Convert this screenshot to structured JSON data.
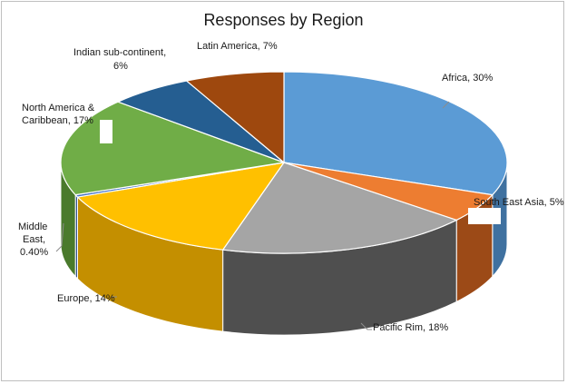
{
  "chart_data": {
    "type": "pie",
    "title": "Responses by Region",
    "three_d": true,
    "legend": "none",
    "slices": [
      {
        "label": "Africa",
        "value": 30,
        "value_label": "30%",
        "color": "#5b9bd5",
        "side_color": "#3f71a0"
      },
      {
        "label": "South East Asia",
        "value": 5,
        "value_label": "5%",
        "color": "#ed7d31",
        "side_color": "#9c4a17"
      },
      {
        "label": "Pacific Rim",
        "value": 18,
        "value_label": "18%",
        "color": "#a5a5a5",
        "side_color": "#4f4f4f"
      },
      {
        "label": "Europe",
        "value": 14,
        "value_label": "14%",
        "color": "#ffc000",
        "side_color": "#c48f00"
      },
      {
        "label": "Middle East",
        "value": 0.4,
        "value_label": "0.40%",
        "color": "#4472c4",
        "side_color": "#2d4f8a"
      },
      {
        "label": "North America & Caribbean",
        "value": 17,
        "value_label": "17%",
        "color": "#70ad47",
        "side_color": "#4a7a2c"
      },
      {
        "label": "Indian sub-continent",
        "value": 6,
        "value_label": "6%",
        "color": "#255e91",
        "side_color": "#173c5d"
      },
      {
        "label": "Latin America",
        "value": 7,
        "value_label": "7%",
        "color": "#9e480e",
        "side_color": "#6a2f08"
      }
    ],
    "data_labels": {
      "africa": "Africa, 30%",
      "sea": "South East Asia, 5%",
      "pacific": "Pacific Rim, 18%",
      "europe": "Europe,  14%",
      "middle_east_1": "Middle",
      "middle_east_2": "East,",
      "middle_east_3": "0.40%",
      "north_america_1": "North America &",
      "north_america_2": "Caribbean, 17%",
      "indian_1": "Indian sub-continent,",
      "indian_2": "6%",
      "latin": "Latin America, 7%"
    }
  }
}
